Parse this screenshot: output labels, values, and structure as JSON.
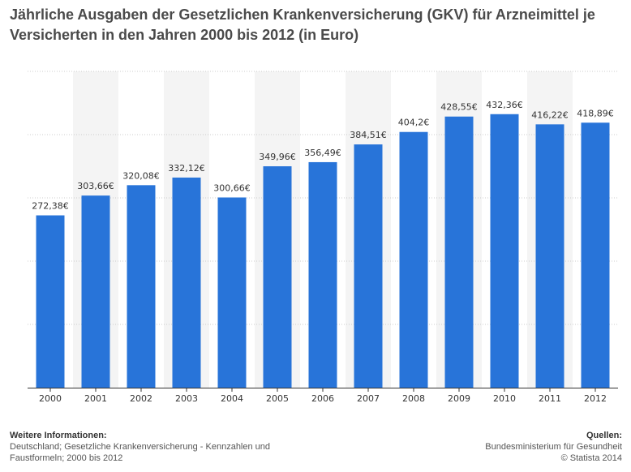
{
  "header": {
    "title": "Jährliche Ausgaben der Gesetzlichen Krankenversicherung (GKV) für Arzneimittel je Versicherten in den Jahren 2000 bis 2012 (in Euro)"
  },
  "colors": {
    "bar": "#2874d9",
    "band": "#f4f4f4",
    "grid": "#cccccc",
    "axis": "#333333"
  },
  "chart_data": {
    "type": "bar",
    "categories": [
      "2000",
      "2001",
      "2002",
      "2003",
      "2004",
      "2005",
      "2006",
      "2007",
      "2008",
      "2009",
      "2010",
      "2011",
      "2012"
    ],
    "values": [
      272.38,
      303.66,
      320.08,
      332.12,
      300.66,
      349.96,
      356.49,
      384.51,
      404.2,
      428.55,
      432.36,
      416.22,
      418.89
    ],
    "value_labels": [
      "272,38€",
      "303,66€",
      "320,08€",
      "332,12€",
      "300,66€",
      "349,96€",
      "356,49€",
      "384,51€",
      "404,2€",
      "428,55€",
      "432,36€",
      "416,22€",
      "418,89€"
    ],
    "ylim": [
      0,
      500
    ],
    "grid": true,
    "ytick_labels_shown": false,
    "title": "Jährliche Ausgaben der Gesetzlichen Krankenversicherung (GKV) für Arzneimittel je Versicherten in den Jahren 2000 bis 2012 (in Euro)",
    "xlabel": "",
    "ylabel": ""
  },
  "footer": {
    "left_heading": "Weitere Informationen:",
    "left_lines": [
      "Deutschland; Gesetzliche Krankenversicherung - Kennzahlen und",
      "Faustformeln; 2000 bis 2012"
    ],
    "right_heading": "Quellen:",
    "right_lines": [
      "Bundesministerium für Gesundheit",
      "© Statista 2014"
    ]
  }
}
